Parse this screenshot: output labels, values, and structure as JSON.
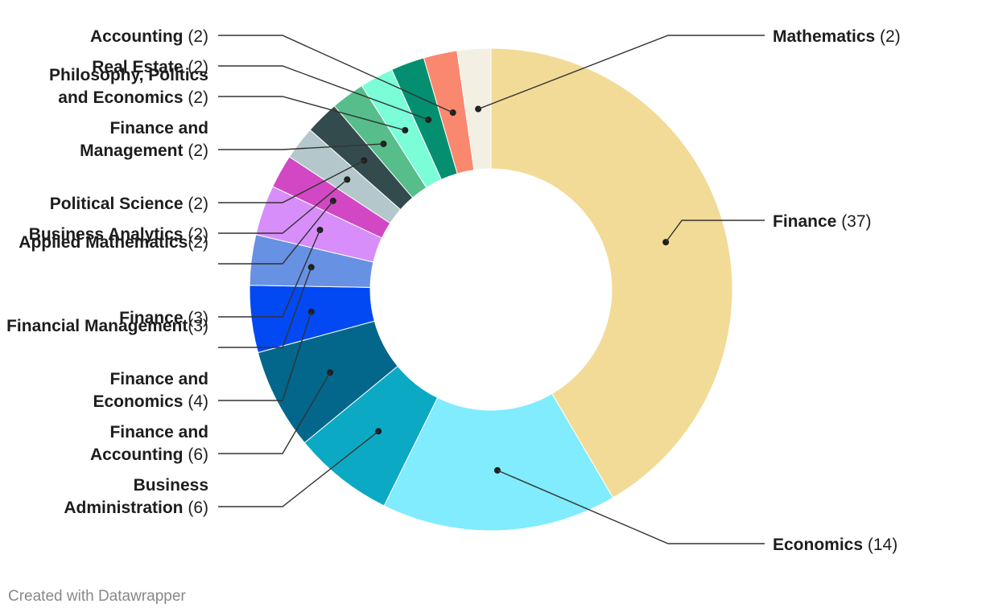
{
  "chart_data": {
    "type": "pie",
    "style": "donut",
    "title": "",
    "slices": [
      {
        "name": "Finance",
        "value": 37,
        "count_label": "(37)",
        "color": "#f2db97"
      },
      {
        "name": "Economics",
        "value": 14,
        "count_label": "(14)",
        "color": "#80ecfd"
      },
      {
        "name": "Business Administration",
        "value": 6,
        "count_label": "(6)",
        "color": "#0ca9c4"
      },
      {
        "name": "Finance and Accounting",
        "value": 6,
        "count_label": "(6)",
        "color": "#02678a"
      },
      {
        "name": "Finance and Economics",
        "value": 4,
        "count_label": "(4)",
        "color": "#0249f3"
      },
      {
        "name": "Financial Management",
        "value": 3,
        "count_label": "(3)",
        "color": "#6791e3"
      },
      {
        "name": "Finance",
        "value": 3,
        "count_label": "(3)",
        "color": "#d78efa"
      },
      {
        "name": "Applied Mathematics",
        "value": 2,
        "count_label": "(2)",
        "color": "#d248c4"
      },
      {
        "name": "Business Analytics",
        "value": 2,
        "count_label": "(2)",
        "color": "#b4c8cb"
      },
      {
        "name": "Political Science",
        "value": 2,
        "count_label": "(2)",
        "color": "#344b4e"
      },
      {
        "name": "Finance and Management",
        "value": 2,
        "count_label": "(2)",
        "color": "#56bd8b"
      },
      {
        "name": "Philosophy, Politics and Economics",
        "value": 2,
        "count_label": "(2)",
        "color": "#7bfed8"
      },
      {
        "name": "Real Estate",
        "value": 2,
        "count_label": "(2)",
        "color": "#048f71"
      },
      {
        "name": "Accounting",
        "value": 2,
        "count_label": "(2)",
        "color": "#f9886f"
      },
      {
        "name": "Mathematics",
        "value": 2,
        "count_label": "(2)",
        "color": "#f3efe3"
      }
    ],
    "label_lines": [
      [
        [
          "Finance",
          "(37)"
        ]
      ],
      [
        [
          "Economics",
          "(14)"
        ]
      ],
      [
        [
          "Business",
          ""
        ],
        [
          "Administration",
          "(6)"
        ]
      ],
      [
        [
          "Finance and",
          ""
        ],
        [
          "Accounting",
          "(6)"
        ]
      ],
      [
        [
          "Finance and",
          ""
        ],
        [
          "Economics",
          "(4)"
        ]
      ],
      [
        [
          "Financial Management",
          ""
        ],
        [
          "",
          "(3)"
        ]
      ],
      [
        [
          "Finance",
          "(3)"
        ]
      ],
      [
        [
          "Applied Mathematics",
          ""
        ],
        [
          "",
          "(2)"
        ]
      ],
      [
        [
          "Business Analytics",
          "(2)"
        ]
      ],
      [
        [
          "Political Science",
          "(2)"
        ]
      ],
      [
        [
          "Finance and",
          ""
        ],
        [
          "Management",
          "(2)"
        ]
      ],
      [
        [
          "Philosophy, Politics",
          ""
        ],
        [
          "and Economics",
          "(2)"
        ]
      ],
      [
        [
          "Real Estate",
          "(2)"
        ]
      ],
      [
        [
          "Accounting",
          "(2)"
        ]
      ],
      [
        [
          "Mathematics",
          "(2)"
        ]
      ]
    ]
  },
  "footer": {
    "credit": "Created with Datawrapper"
  }
}
